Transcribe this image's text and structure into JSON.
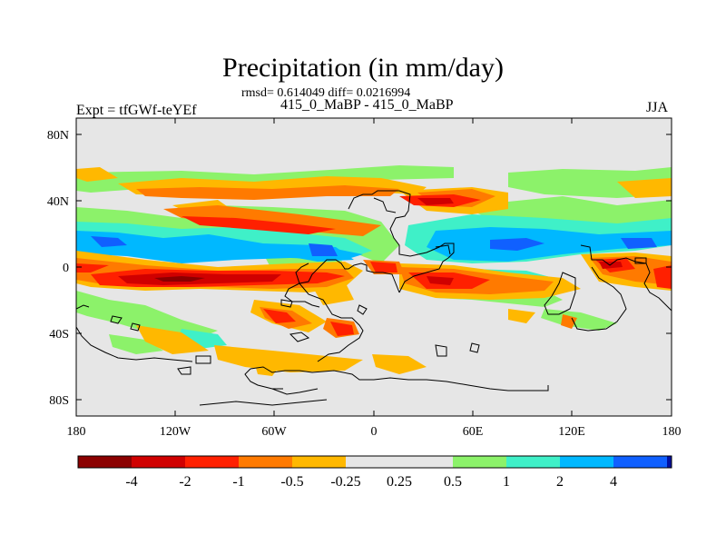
{
  "title": "Precipitation (in mm/day)",
  "stats": "rmsd= 0.614049 diff= 0.0216994",
  "comparison": "415_0_MaBP - 415_0_MaBP",
  "experiment": "Expt = tfGWf-teYEf",
  "season": "JJA",
  "y_tick_labels": [
    "80N",
    "40N",
    "0",
    "40S",
    "80S"
  ],
  "x_tick_labels": [
    "180",
    "120W",
    "60W",
    "0",
    "60E",
    "120E",
    "180"
  ],
  "colorbar": {
    "colors": [
      "#8b0000",
      "#d00000",
      "#ff2000",
      "#ff7a00",
      "#ffb800",
      "#e6e6e6",
      "#e6e6e6",
      "#8cf26a",
      "#3ff0c8",
      "#00b8ff",
      "#1060ff",
      "#0010a0"
    ],
    "labels": [
      "-4",
      "-2",
      "-1",
      "-0.5",
      "-0.25",
      "0.25",
      "0.5",
      "1",
      "2",
      "4"
    ]
  },
  "map_colors": {
    "background": "#e6e6e6",
    "coast": "#000000"
  }
}
